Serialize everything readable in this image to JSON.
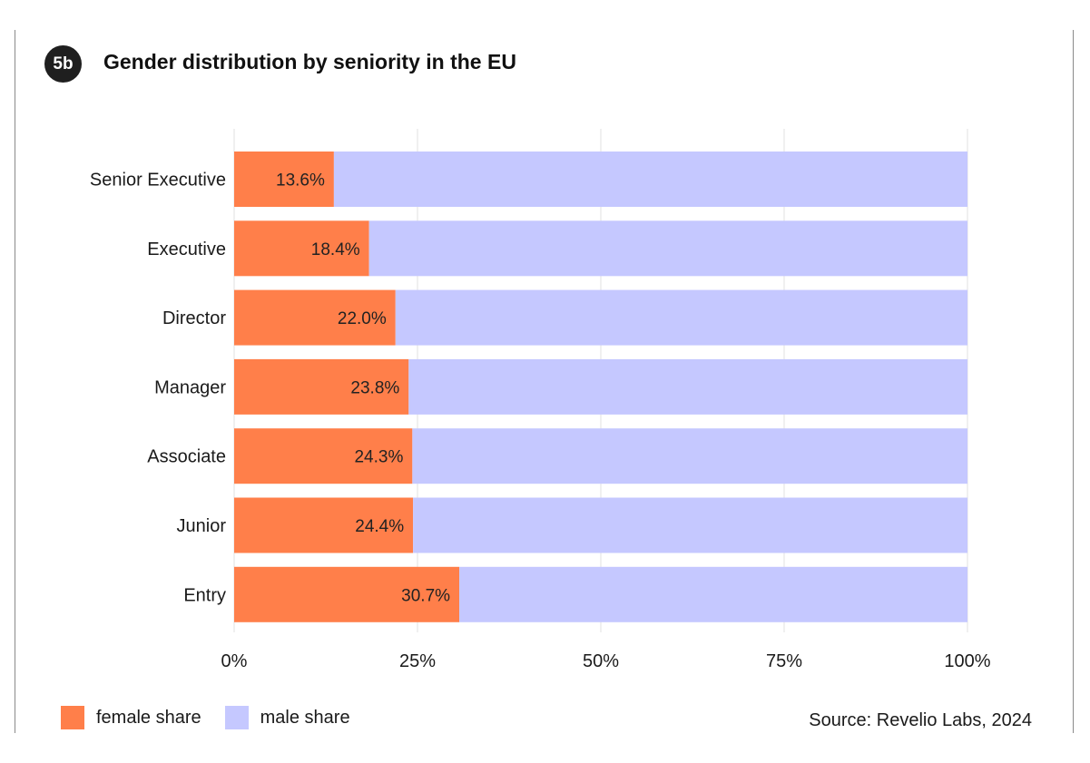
{
  "header": {
    "badge": "5b",
    "title": "Gender distribution by seniority in the EU"
  },
  "chart_data": {
    "type": "bar",
    "orientation": "horizontal",
    "stacked": true,
    "categories": [
      "Senior Executive",
      "Executive",
      "Director",
      "Manager",
      "Associate",
      "Junior",
      "Entry"
    ],
    "series": [
      {
        "name": "female share",
        "color": "#ff7f4a",
        "values": [
          13.6,
          18.4,
          22.0,
          23.8,
          24.3,
          24.4,
          30.7
        ]
      },
      {
        "name": "male share",
        "color": "#c5c8ff",
        "values": [
          86.4,
          81.6,
          78.0,
          76.2,
          75.7,
          75.6,
          69.3
        ]
      }
    ],
    "data_labels": [
      "13.6%",
      "18.4%",
      "22.0%",
      "23.8%",
      "24.3%",
      "24.4%",
      "30.7%"
    ],
    "x_ticks": [
      0,
      25,
      50,
      75,
      100
    ],
    "x_tick_labels": [
      "0%",
      "25%",
      "50%",
      "75%",
      "100%"
    ],
    "xlim": [
      0,
      100
    ],
    "grid": "vertical",
    "legend_position": "bottom-left"
  },
  "legend": {
    "female_label": "female share",
    "male_label": "male share"
  },
  "source": "Source: Revelio Labs, 2024"
}
